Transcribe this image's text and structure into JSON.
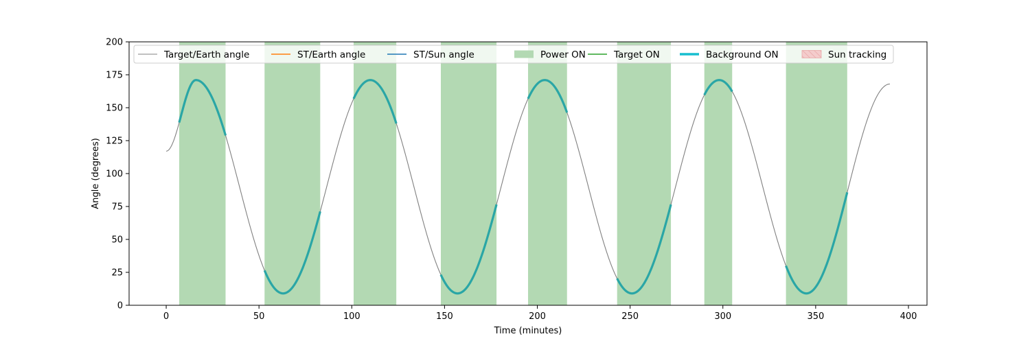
{
  "chart_data": {
    "type": "line",
    "title": "",
    "xlabel": "Time (minutes)",
    "ylabel": "Angle (degrees)",
    "xlim": [
      -20,
      410
    ],
    "ylim": [
      0,
      200
    ],
    "xticks": [
      0,
      50,
      100,
      150,
      200,
      250,
      300,
      350,
      400
    ],
    "yticks": [
      0,
      25,
      50,
      75,
      100,
      125,
      150,
      175,
      200
    ],
    "grid": false,
    "legend_placement": "top, single row",
    "legend": [
      {
        "label": "Target/Earth angle",
        "kind": "line",
        "color": "#808080"
      },
      {
        "label": "ST/Earth angle",
        "kind": "line",
        "color": "#ff7f0e"
      },
      {
        "label": "ST/Sun angle",
        "kind": "line",
        "color": "#1f77b4"
      },
      {
        "label": "Power ON",
        "kind": "patch",
        "color": "#b3d9b3"
      },
      {
        "label": "Target ON",
        "kind": "line",
        "color": "#2ca02c"
      },
      {
        "label": "Background ON",
        "kind": "thick-line",
        "color": "#17becf"
      },
      {
        "label": "Sun tracking",
        "kind": "hatch-patch",
        "color": "#f4cccc"
      }
    ],
    "series": [
      {
        "name": "Target/Earth angle",
        "color": "#808080",
        "points": [
          [
            0,
            117
          ],
          [
            16,
            171
          ],
          [
            63,
            9
          ],
          [
            110,
            171
          ],
          [
            157,
            9
          ],
          [
            204,
            171
          ],
          [
            251,
            9
          ],
          [
            298,
            171
          ],
          [
            345,
            9
          ],
          [
            390,
            168
          ]
        ]
      }
    ],
    "power_on_intervals": [
      [
        7,
        32
      ],
      [
        53,
        83
      ],
      [
        101,
        124
      ],
      [
        148,
        178
      ],
      [
        195,
        216
      ],
      [
        243,
        272
      ],
      [
        290,
        305
      ],
      [
        334,
        367
      ]
    ],
    "background_on_intervals": [
      [
        7,
        32
      ],
      [
        53,
        83
      ],
      [
        101,
        124
      ],
      [
        148,
        178
      ],
      [
        195,
        216
      ],
      [
        243,
        272
      ],
      [
        290,
        305
      ],
      [
        334,
        367
      ]
    ],
    "colors": {
      "power_on": "#b3d9b3",
      "background_on": "#2aa6a6",
      "target_earth": "#808080"
    }
  }
}
